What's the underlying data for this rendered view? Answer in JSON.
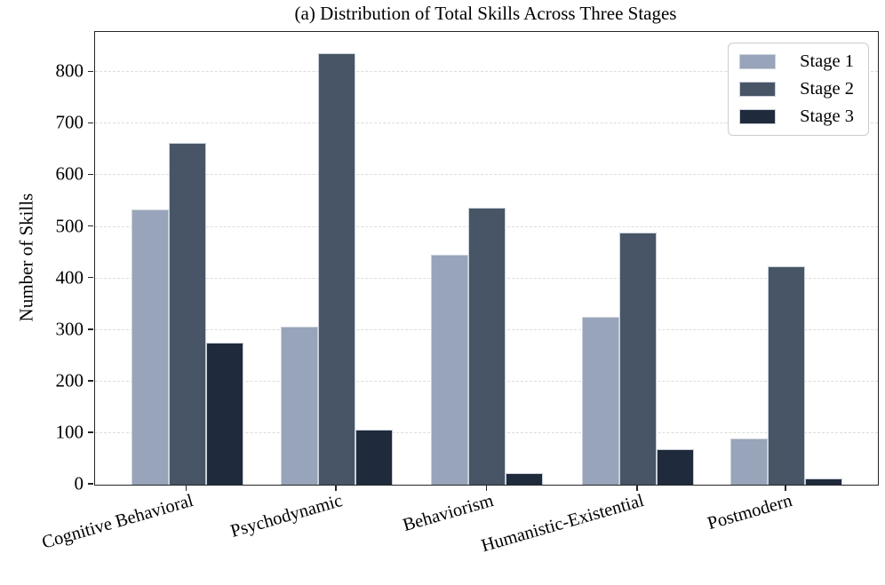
{
  "chart_data": {
    "type": "bar",
    "title": "(a) Distribution of Total Skills Across Three Stages",
    "ylabel": "Number of Skills",
    "xlabel": "",
    "categories": [
      "Cognitive Behavioral",
      "Psychodynamic",
      "Behaviorism",
      "Humanistic-Existential",
      "Postmodern"
    ],
    "series": [
      {
        "name": "Stage 1",
        "color": "#97A4B9",
        "values": [
          534,
          307,
          446,
          326,
          90
        ]
      },
      {
        "name": "Stage 2",
        "color": "#475566",
        "values": [
          663,
          836,
          538,
          489,
          424
        ]
      },
      {
        "name": "Stage 3",
        "color": "#1F2A3C",
        "values": [
          276,
          107,
          22,
          69,
          12
        ]
      }
    ],
    "ylim": [
      0,
      878
    ],
    "yticks": [
      0,
      100,
      200,
      300,
      400,
      500,
      600,
      700,
      800
    ],
    "grid": "horizontal-dashed",
    "gridline_color": "#DCDCDC",
    "bar_edge_color": "#C9CFD9",
    "legend_position": "upper-right",
    "background": "#FFFFFF"
  }
}
